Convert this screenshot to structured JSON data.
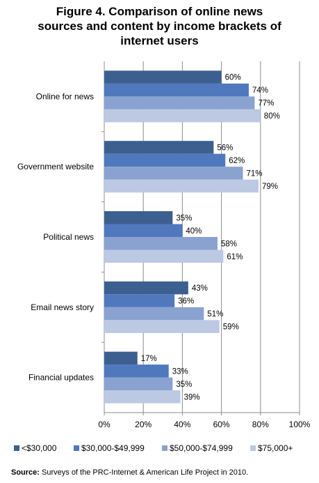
{
  "chart_data": {
    "type": "bar",
    "orientation": "horizontal",
    "title": "Figure 4. Comparison of online news sources and content by income brackets of internet users",
    "title_lines": [
      "Figure 4. Comparison of online news",
      "sources and content by income brackets of",
      "internet users"
    ],
    "categories": [
      "Online for news",
      "Government website",
      "Political news",
      "Email news story",
      "Financial updates"
    ],
    "series": [
      {
        "name": "<$30,000",
        "color": "#3c5f90",
        "values": [
          60,
          56,
          35,
          43,
          17
        ]
      },
      {
        "name": "$30,000-$49,999",
        "color": "#4f78bd",
        "values": [
          74,
          62,
          40,
          36,
          33
        ]
      },
      {
        "name": "$50,000-$74,999",
        "color": "#8aa2d0",
        "values": [
          77,
          71,
          58,
          51,
          35
        ]
      },
      {
        "name": "$75,000+",
        "color": "#bdc9e3",
        "values": [
          80,
          79,
          61,
          59,
          39
        ]
      }
    ],
    "value_suffix": "%",
    "xlim": [
      0,
      100
    ],
    "xticks": [
      "0%",
      "20%",
      "40%",
      "60%",
      "80%",
      "100%"
    ],
    "grid": true,
    "legend_position": "bottom"
  },
  "source": {
    "label": "Source:",
    "text": " Surveys of the PRC-Internet & American Life Project in 2010."
  }
}
